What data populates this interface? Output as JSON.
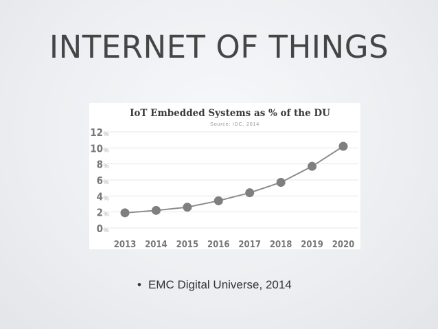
{
  "slide": {
    "title": "INTERNET OF THINGS",
    "bullet_marker": "•",
    "bullet": "EMC Digital Universe, 2014"
  },
  "colors": {
    "background": "#eceef1",
    "title": "#454545",
    "chart_title": "#3a3a3a",
    "source": "#9a9a9a",
    "axis_label": "#777777",
    "line": "#8c8c8c",
    "marker": "#7f7f7f",
    "grid": "#e6e6e6"
  },
  "chart_data": {
    "type": "line",
    "title": "IoT Embedded Systems as % of the DU",
    "subtitle": "Source: IDC, 2014",
    "xlabel": "",
    "ylabel": "",
    "categories": [
      "2013",
      "2014",
      "2015",
      "2016",
      "2017",
      "2018",
      "2019",
      "2020"
    ],
    "y_ticks": [
      0,
      2,
      4,
      6,
      8,
      10,
      12
    ],
    "y_tick_suffix": "%",
    "ylim": [
      0,
      12
    ],
    "grid": true,
    "series": [
      {
        "values": [
          1.9,
          2.2,
          2.6,
          3.4,
          4.4,
          5.7,
          7.7,
          10.2
        ]
      }
    ]
  }
}
